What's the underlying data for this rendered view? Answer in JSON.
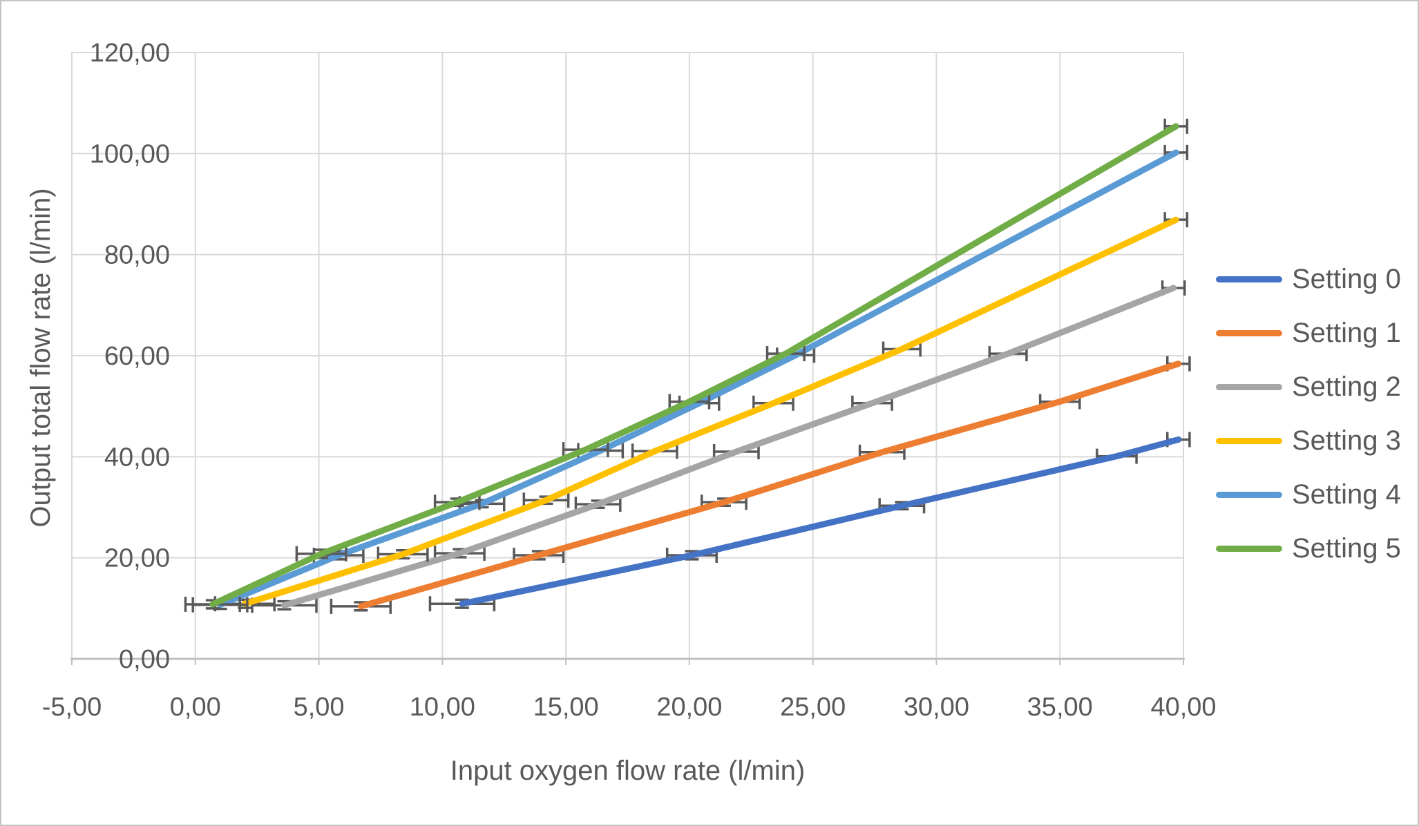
{
  "figure": {
    "background": "#ffffff",
    "border_color": "#c4c4c4"
  },
  "chart_data": {
    "type": "line",
    "title": "",
    "xlabel": "Input oxygen flow rate (l/min)",
    "ylabel": "Output total flow rate (l/min)",
    "xlim": [
      -5,
      40
    ],
    "ylim": [
      0,
      120
    ],
    "grid": true,
    "legend_position": "right",
    "error_bars": "x (horizontal), small y caps on low-flow points",
    "x_ticks": [
      -5,
      0,
      5,
      10,
      15,
      20,
      25,
      30,
      35,
      40
    ],
    "x_tick_labels": [
      "-5,00",
      "0,00",
      "5,00",
      "10,00",
      "15,00",
      "20,00",
      "25,00",
      "30,00",
      "35,00",
      "40,00"
    ],
    "y_ticks": [
      0,
      20,
      40,
      60,
      80,
      100,
      120
    ],
    "y_tick_labels": [
      "0,00",
      "20,00",
      "40,00",
      "60,00",
      "80,00",
      "100,00",
      "120,00"
    ],
    "colors": {
      "gridline": "#d9d9d9",
      "axis_line": "#bfbfbf",
      "tick_label_text": "#595959",
      "axis_title_text": "#595959",
      "legend_text": "#595959",
      "error_bar": "#595959"
    },
    "series": [
      {
        "name": "Setting 0",
        "color": "#4472C4",
        "points": [
          {
            "x": 10.8,
            "y": 10.9,
            "xerr": 1.3,
            "yerr": 0.8
          },
          {
            "x": 20.1,
            "y": 20.5,
            "xerr": 1.0,
            "yerr": 0.8
          },
          {
            "x": 28.6,
            "y": 30.3,
            "xerr": 0.9,
            "yerr": 0.7
          },
          {
            "x": 37.3,
            "y": 40.1,
            "xerr": 0.8,
            "yerr": 0
          },
          {
            "x": 39.8,
            "y": 43.4,
            "xerr": 0.45,
            "yerr": 0
          }
        ]
      },
      {
        "name": "Setting 1",
        "color": "#ED7D31",
        "points": [
          {
            "x": 6.7,
            "y": 10.4,
            "xerr": 1.2,
            "yerr": 0.8
          },
          {
            "x": 13.9,
            "y": 20.5,
            "xerr": 1.0,
            "yerr": 0.8
          },
          {
            "x": 21.4,
            "y": 31.0,
            "xerr": 0.9,
            "yerr": 0.7
          },
          {
            "x": 27.8,
            "y": 40.9,
            "xerr": 0.9,
            "yerr": 0
          },
          {
            "x": 35.0,
            "y": 50.9,
            "xerr": 0.8,
            "yerr": 0
          },
          {
            "x": 39.8,
            "y": 58.4,
            "xerr": 0.45,
            "yerr": 0
          }
        ]
      },
      {
        "name": "Setting 2",
        "color": "#A5A5A5",
        "points": [
          {
            "x": 3.6,
            "y": 10.6,
            "xerr": 1.3,
            "yerr": 0.8
          },
          {
            "x": 10.7,
            "y": 20.9,
            "xerr": 1.0,
            "yerr": 0.8
          },
          {
            "x": 16.3,
            "y": 30.6,
            "xerr": 0.9,
            "yerr": 0.7
          },
          {
            "x": 21.9,
            "y": 41.0,
            "xerr": 0.9,
            "yerr": 0
          },
          {
            "x": 27.4,
            "y": 50.6,
            "xerr": 0.8,
            "yerr": 0
          },
          {
            "x": 32.9,
            "y": 60.4,
            "xerr": 0.75,
            "yerr": 0
          },
          {
            "x": 39.6,
            "y": 73.4,
            "xerr": 0.45,
            "yerr": 0
          }
        ]
      },
      {
        "name": "Setting 3",
        "color": "#FFC000",
        "points": [
          {
            "x": 2.0,
            "y": 10.9,
            "xerr": 1.2,
            "yerr": 0.8
          },
          {
            "x": 8.4,
            "y": 20.7,
            "xerr": 1.0,
            "yerr": 0.8
          },
          {
            "x": 14.2,
            "y": 31.4,
            "xerr": 0.9,
            "yerr": 0.7
          },
          {
            "x": 18.6,
            "y": 41.1,
            "xerr": 0.9,
            "yerr": 0
          },
          {
            "x": 23.4,
            "y": 50.6,
            "xerr": 0.8,
            "yerr": 0
          },
          {
            "x": 28.6,
            "y": 61.3,
            "xerr": 0.75,
            "yerr": 0
          },
          {
            "x": 39.7,
            "y": 86.9,
            "xerr": 0.45,
            "yerr": 0
          }
        ]
      },
      {
        "name": "Setting 4",
        "color": "#5B9BD5",
        "points": [
          {
            "x": 1.0,
            "y": 10.7,
            "xerr": 1.1,
            "yerr": 0.8
          },
          {
            "x": 5.8,
            "y": 20.5,
            "xerr": 1.0,
            "yerr": 0.8
          },
          {
            "x": 11.6,
            "y": 30.7,
            "xerr": 0.9,
            "yerr": 0.7
          },
          {
            "x": 16.4,
            "y": 41.2,
            "xerr": 0.9,
            "yerr": 0
          },
          {
            "x": 20.4,
            "y": 50.6,
            "xerr": 0.8,
            "yerr": 0
          },
          {
            "x": 24.3,
            "y": 60.1,
            "xerr": 0.75,
            "yerr": 0
          },
          {
            "x": 39.7,
            "y": 100.2,
            "xerr": 0.45,
            "yerr": 0
          }
        ]
      },
      {
        "name": "Setting 5",
        "color": "#70AD47",
        "points": [
          {
            "x": 0.7,
            "y": 10.8,
            "xerr": 1.1,
            "yerr": 0.8
          },
          {
            "x": 5.1,
            "y": 20.8,
            "xerr": 1.0,
            "yerr": 0.8
          },
          {
            "x": 10.6,
            "y": 31.0,
            "xerr": 0.9,
            "yerr": 0.7
          },
          {
            "x": 15.8,
            "y": 41.4,
            "xerr": 0.9,
            "yerr": 0
          },
          {
            "x": 20.0,
            "y": 50.9,
            "xerr": 0.8,
            "yerr": 0
          },
          {
            "x": 23.9,
            "y": 60.4,
            "xerr": 0.75,
            "yerr": 0
          },
          {
            "x": 39.7,
            "y": 105.4,
            "xerr": 0.45,
            "yerr": 0
          }
        ]
      }
    ]
  },
  "legend": {
    "items": [
      "Setting 0",
      "Setting 1",
      "Setting 2",
      "Setting 3",
      "Setting 4",
      "Setting 5"
    ]
  }
}
